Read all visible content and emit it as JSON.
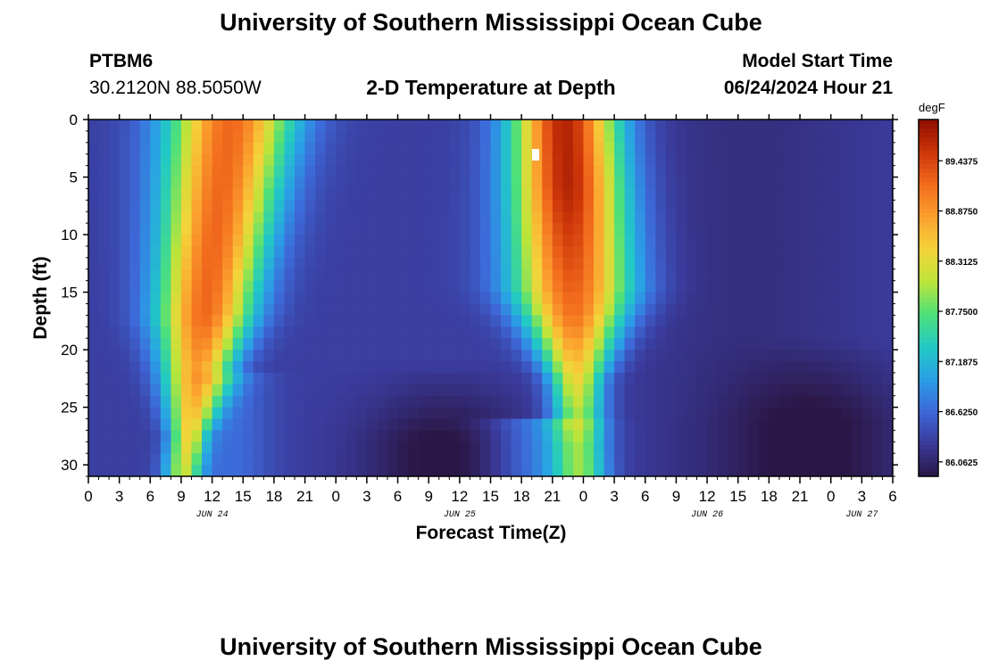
{
  "page_title": "University of Southern Mississippi Ocean Cube",
  "footer_title": "University of Southern Mississippi Ocean Cube",
  "station": {
    "id": "PTBM6",
    "location": "30.2120N  88.5050W"
  },
  "model": {
    "start_label": "Model Start Time",
    "start_value": "06/24/2024 Hour 21"
  },
  "chart_data": {
    "type": "heatmap",
    "title": "2-D Temperature at Depth",
    "xlabel": "Forecast Time(Z)",
    "ylabel": "Depth (ft)",
    "ylim": [
      0,
      31
    ],
    "y_inverted": true,
    "y_ticks": [
      0,
      5,
      10,
      15,
      20,
      25,
      30
    ],
    "x_start_hour": 0,
    "x_end_hour": 78,
    "x_tick_labels": [
      "0",
      "3",
      "6",
      "9",
      "12",
      "15",
      "18",
      "21",
      "0",
      "3",
      "6",
      "9",
      "12",
      "15",
      "18",
      "21",
      "0",
      "3",
      "6",
      "9",
      "12",
      "15",
      "18",
      "21",
      "0",
      "3",
      "6"
    ],
    "date_labels": [
      {
        "label": "JUN 24",
        "hour": 12
      },
      {
        "label": "JUN 25",
        "hour": 36
      },
      {
        "label": "JUN 26",
        "hour": 60
      },
      {
        "label": "JUN 27",
        "hour": 75
      }
    ],
    "colorbar": {
      "unit": "degF",
      "min": 85.9,
      "max": 89.9,
      "tick_values": [
        89.4375,
        88.875,
        88.3125,
        87.75,
        87.1875,
        86.625,
        86.0625
      ],
      "tick_labels": [
        "89.4375",
        "88.8750",
        "88.3125",
        "87.7500",
        "87.1875",
        "86.6250",
        "86.0625"
      ],
      "colors": [
        "#2b1746",
        "#3a3a9a",
        "#3d68d8",
        "#2a9fe6",
        "#22c9c4",
        "#4ee07a",
        "#bce43a",
        "#f4d33a",
        "#fba02e",
        "#f26b1d",
        "#cc3509",
        "#8e0e02"
      ]
    }
  },
  "colors": {
    "background": "#ffffff",
    "text": "#000000"
  }
}
